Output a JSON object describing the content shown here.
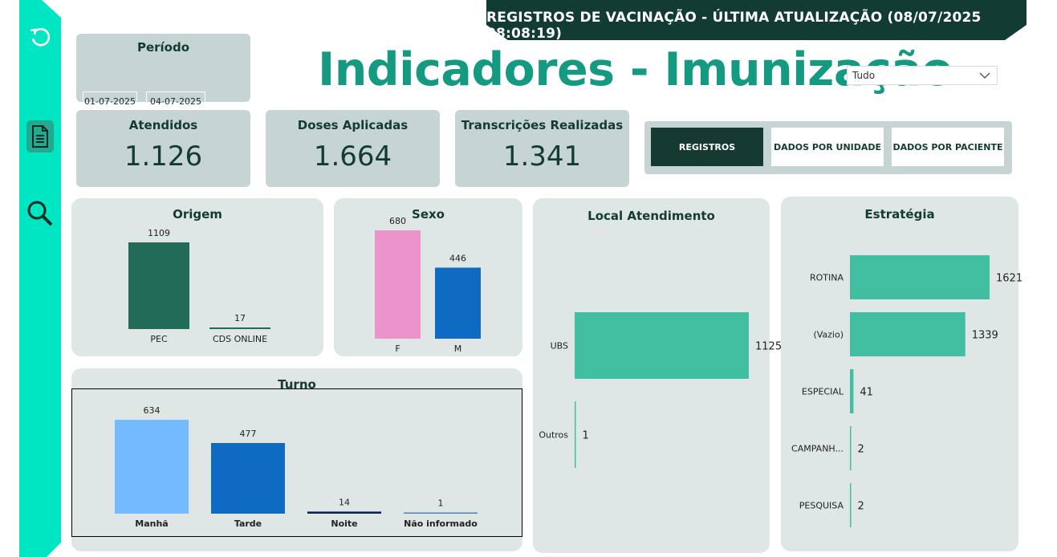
{
  "header": {
    "banner": "REGISTROS DE VACINAÇÃO - ÚLTIMA ATUALIZAÇÃO (08/07/2025 08:08:19)",
    "title": "Indicadores - Imunização"
  },
  "sidebar": {
    "icons": [
      "reset-icon",
      "document-icon",
      "search-icon"
    ]
  },
  "periodo": {
    "label": "Período",
    "start": "01-07-2025",
    "end": "04-07-2025"
  },
  "filter": {
    "value": "Tudo"
  },
  "kpis": [
    {
      "label": "Atendidos",
      "value": "1.126"
    },
    {
      "label": "Doses Aplicadas",
      "value": "1.664"
    },
    {
      "label": "Transcrições Realizadas",
      "value": "1.341"
    }
  ],
  "nav": [
    {
      "label": "REGISTROS",
      "active": true
    },
    {
      "label": "DADOS POR UNIDADE",
      "active": false
    },
    {
      "label": "DADOS POR PACIENTE",
      "active": false
    }
  ],
  "colors": {
    "accent": "#00e6c3",
    "banner": "#123b33",
    "title": "#149a80",
    "origem": "#226b58",
    "sexo_f": "#ec93cc",
    "sexo_m": "#0f6bc2",
    "manha": "#73baff",
    "tarde": "#0f6bc2",
    "noite": "#0b2056",
    "nao_informado": "#4d80b8",
    "teal_bar": "#41bfa0"
  },
  "chart_data": [
    {
      "type": "bar",
      "title": "Origem",
      "categories": [
        "PEC",
        "CDS ONLINE"
      ],
      "values": [
        1109,
        17
      ]
    },
    {
      "type": "bar",
      "title": "Sexo",
      "categories": [
        "F",
        "M"
      ],
      "values": [
        680,
        446
      ]
    },
    {
      "type": "bar",
      "title": "Turno",
      "categories": [
        "Manhã",
        "Tarde",
        "Noite",
        "Não informado"
      ],
      "values": [
        634,
        477,
        14,
        1
      ]
    },
    {
      "type": "bar",
      "orientation": "horizontal",
      "title": "Local Atendimento",
      "categories": [
        "UBS",
        "Outros"
      ],
      "values": [
        1125,
        1
      ]
    },
    {
      "type": "bar",
      "orientation": "horizontal",
      "title": "Estratégia",
      "categories": [
        "ROTINA",
        "(Vazio)",
        "ESPECIAL",
        "CAMPANH...",
        "PESQUISA"
      ],
      "values": [
        1621,
        1339,
        41,
        2,
        2
      ]
    }
  ]
}
